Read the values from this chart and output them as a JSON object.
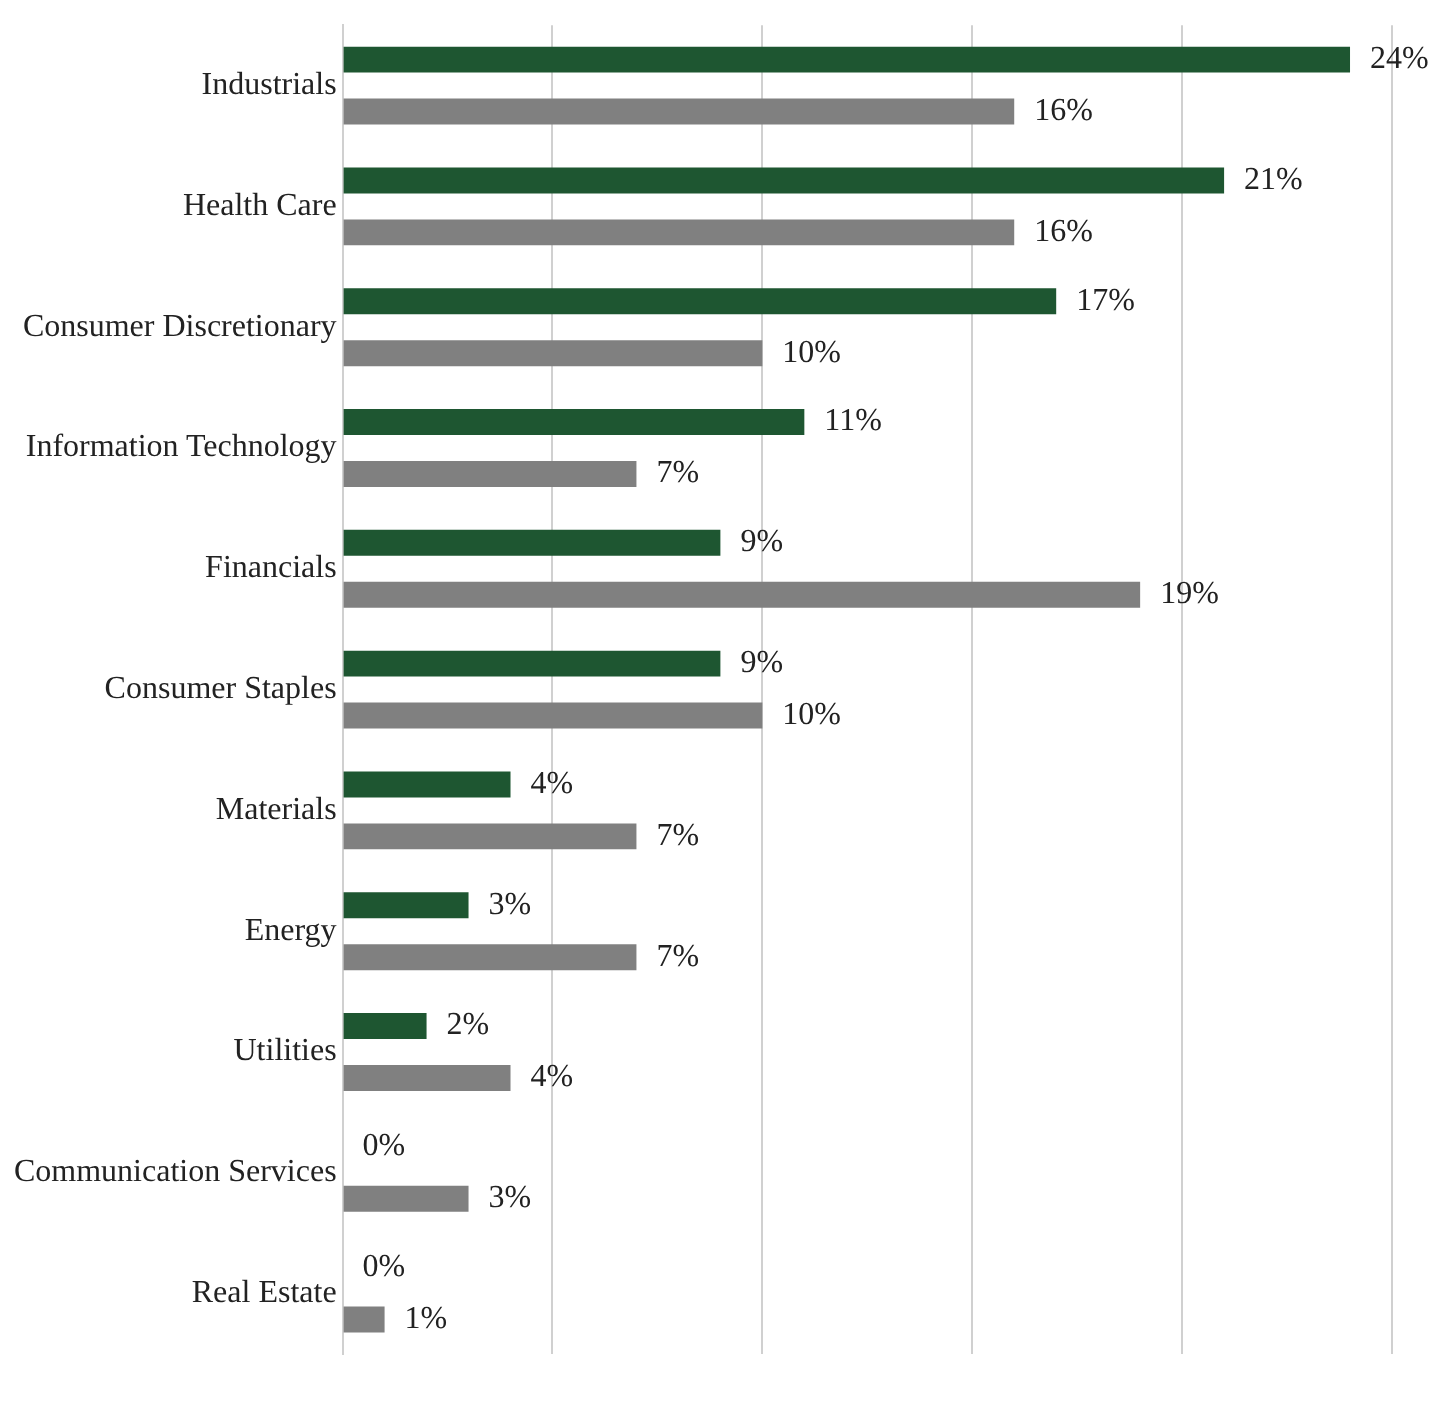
{
  "chart_data": {
    "type": "bar",
    "orientation": "horizontal",
    "categories": [
      "Industrials",
      "Health Care",
      "Consumer Discretionary",
      "Information Technology",
      "Financials",
      "Consumer Staples",
      "Materials",
      "Energy",
      "Utilities",
      "Communication Services",
      "Real Estate"
    ],
    "series": [
      {
        "color": "#1e5631",
        "values": [
          24,
          21,
          17,
          11,
          9,
          9,
          4,
          3,
          2,
          0,
          0
        ],
        "value_labels": [
          "24%",
          "21%",
          "17%",
          "11%",
          "9%",
          "9%",
          "4%",
          "3%",
          "2%",
          "0%",
          "0%"
        ]
      },
      {
        "color": "#808080",
        "values": [
          16,
          16,
          10,
          7,
          19,
          10,
          7,
          7,
          4,
          3,
          1
        ],
        "value_labels": [
          "16%",
          "16%",
          "10%",
          "7%",
          "19%",
          "10%",
          "7%",
          "7%",
          "4%",
          "3%",
          "1%"
        ]
      }
    ],
    "tick_labels": "y",
    "grid": "x",
    "legend": false
  }
}
